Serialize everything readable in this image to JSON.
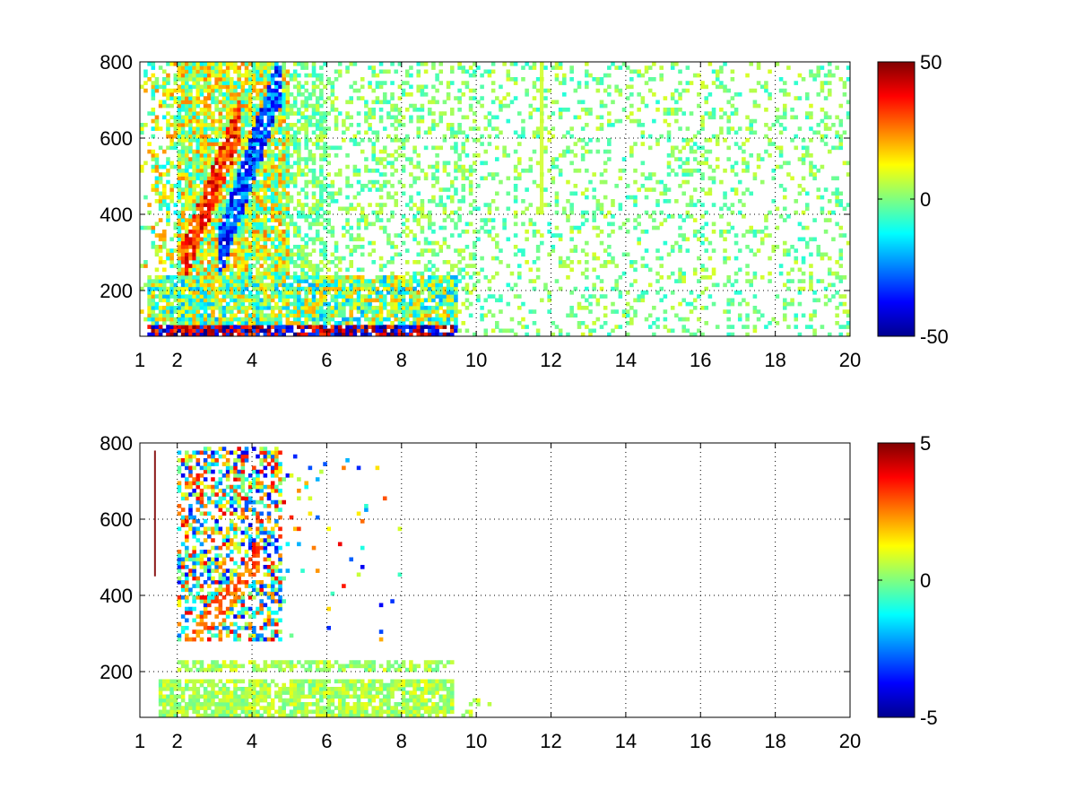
{
  "chart_data": [
    {
      "type": "heatmap",
      "title": "",
      "xlabel": "",
      "ylabel": "",
      "xlim": [
        1,
        20
      ],
      "ylim": [
        80,
        800
      ],
      "xticks": [
        1,
        2,
        4,
        6,
        8,
        10,
        12,
        14,
        16,
        18,
        20
      ],
      "xtick_labels": [
        "1",
        "2",
        "4",
        "6",
        "8",
        "10",
        "12",
        "14",
        "16",
        "18",
        "20"
      ],
      "yticks": [
        200,
        400,
        600,
        800
      ],
      "ytick_labels": [
        "200",
        "400",
        "600",
        "800"
      ],
      "grid": true,
      "colormap": "jet",
      "clim": [
        -50,
        50
      ],
      "colorbar_ticks": [
        -50,
        0,
        50
      ],
      "colorbar_tick_labels": [
        "-50",
        "0",
        "50"
      ],
      "features": [
        {
          "label": "strong band",
          "x": [
            1.2,
            9.4
          ],
          "y": [
            85,
            110
          ],
          "value_range": [
            -50,
            50
          ]
        },
        {
          "label": "secondary band",
          "x": [
            1.2,
            9.4
          ],
          "y": [
            190,
            230
          ],
          "value_range": [
            -25,
            25
          ]
        },
        {
          "label": "positive ridge",
          "x": [
            2.2,
            3.6
          ],
          "y": [
            280,
            620
          ],
          "value_approx": 35
        },
        {
          "label": "negative ridge",
          "x": [
            3.2,
            4.8
          ],
          "y": [
            320,
            720
          ],
          "value_approx": -30
        },
        {
          "label": "vertical streak",
          "x": [
            11.7,
            11.8
          ],
          "y": [
            400,
            800
          ],
          "value_approx": 8
        }
      ]
    },
    {
      "type": "heatmap",
      "title": "",
      "xlabel": "",
      "ylabel": "",
      "xlim": [
        1,
        20
      ],
      "ylim": [
        80,
        800
      ],
      "xticks": [
        1,
        2,
        4,
        6,
        8,
        10,
        12,
        14,
        16,
        18,
        20
      ],
      "xtick_labels": [
        "1",
        "2",
        "4",
        "6",
        "8",
        "10",
        "12",
        "14",
        "16",
        "18",
        "20"
      ],
      "yticks": [
        200,
        400,
        600,
        800
      ],
      "ytick_labels": [
        "200",
        "400",
        "600",
        "800"
      ],
      "grid": true,
      "colormap": "jet",
      "clim": [
        -5,
        5
      ],
      "colorbar_ticks": [
        -5,
        0,
        5
      ],
      "colorbar_tick_labels": [
        "-5",
        "0",
        "5"
      ],
      "features": [
        {
          "label": "low band",
          "x": [
            1.5,
            9.4
          ],
          "y": [
            85,
            180
          ],
          "value_approx": 0.5
        },
        {
          "label": "upper band",
          "x": [
            2.0,
            9.4
          ],
          "y": [
            200,
            230
          ],
          "value_approx": 0.5
        },
        {
          "label": "ridge",
          "x": [
            2.3,
            4.3
          ],
          "y": [
            280,
            480
          ],
          "value_approx": 2.5
        },
        {
          "label": "scatter region",
          "x": [
            2.0,
            4.8
          ],
          "y": [
            280,
            790
          ],
          "value_range": [
            -5,
            5
          ]
        },
        {
          "label": "vertical line",
          "x": [
            1.38,
            1.42
          ],
          "y": [
            450,
            780
          ],
          "value_approx": 5
        }
      ]
    }
  ]
}
